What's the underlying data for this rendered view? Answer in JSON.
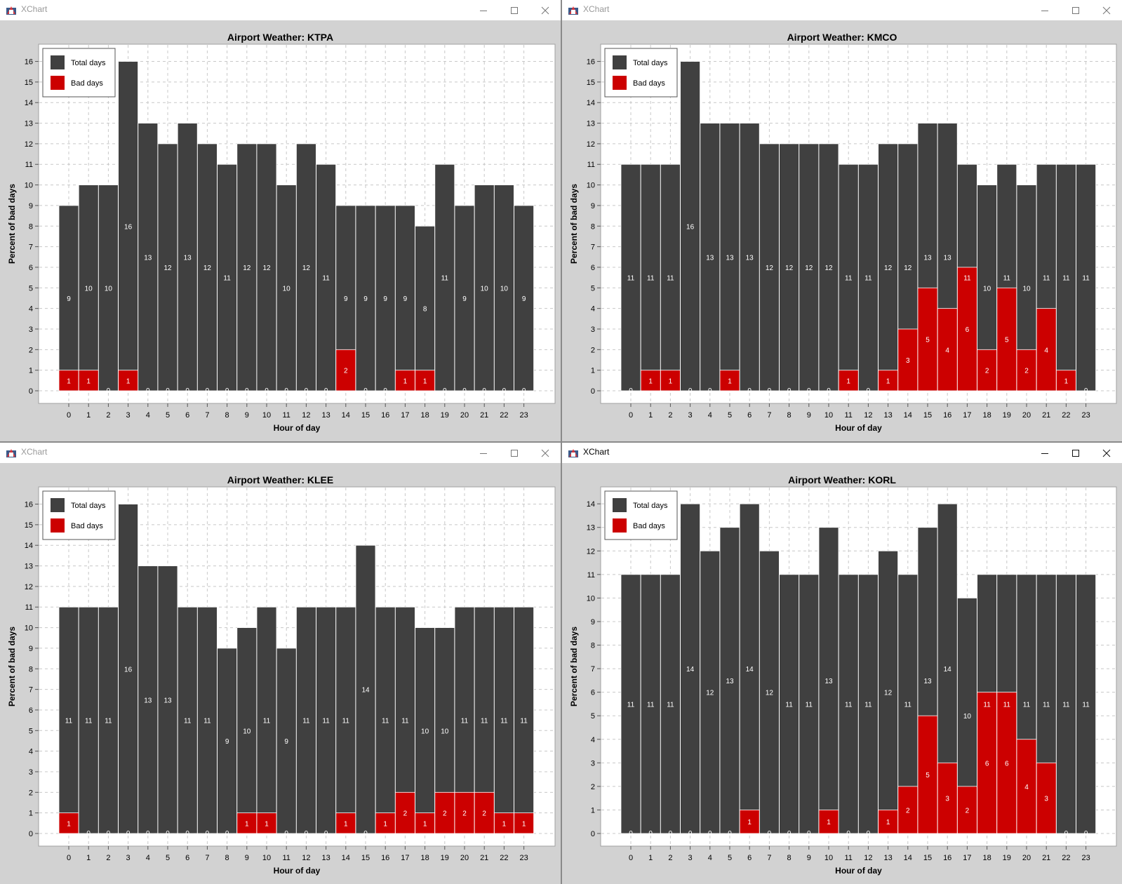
{
  "windows": [
    {
      "title": "XChart",
      "active": false
    },
    {
      "title": "XChart",
      "active": false
    },
    {
      "title": "XChart",
      "active": false
    },
    {
      "title": "XChart",
      "active": true
    }
  ],
  "colors": {
    "total": "#404040",
    "bad": "#cc0000",
    "background": "#d2d2d2",
    "plot": "#ffffff",
    "grid": "#c8c8c8"
  },
  "chart_data": [
    {
      "type": "bar",
      "title": "Airport Weather: KTPA",
      "xlabel": "Hour of day",
      "ylabel": "Percent of bad days",
      "categories": [
        "0",
        "1",
        "2",
        "3",
        "4",
        "5",
        "6",
        "7",
        "8",
        "9",
        "10",
        "11",
        "12",
        "13",
        "14",
        "15",
        "16",
        "17",
        "18",
        "19",
        "20",
        "21",
        "22",
        "23"
      ],
      "ylim": [
        0,
        16.7
      ],
      "yticks": [
        "0",
        "1",
        "2",
        "3",
        "4",
        "5",
        "6",
        "7",
        "8",
        "9",
        "10",
        "11",
        "12",
        "13",
        "14",
        "15",
        "16"
      ],
      "grid": true,
      "legend_position": "top-left",
      "overlap": true,
      "series": [
        {
          "name": "Total days",
          "color": "#404040",
          "values": [
            9,
            10,
            10,
            16,
            13,
            12,
            13,
            12,
            11,
            12,
            12,
            10,
            12,
            11,
            9,
            9,
            9,
            9,
            8,
            11,
            9,
            10,
            10,
            9
          ]
        },
        {
          "name": "Bad days",
          "color": "#cc0000",
          "values": [
            1,
            1,
            0,
            1,
            0,
            0,
            0,
            0,
            0,
            0,
            0,
            0,
            0,
            0,
            2,
            0,
            0,
            1,
            1,
            0,
            0,
            0,
            0,
            0
          ]
        }
      ]
    },
    {
      "type": "bar",
      "title": "Airport Weather: KMCO",
      "xlabel": "Hour of day",
      "ylabel": "Percent of bad days",
      "categories": [
        "0",
        "1",
        "2",
        "3",
        "4",
        "5",
        "6",
        "7",
        "8",
        "9",
        "10",
        "11",
        "12",
        "13",
        "14",
        "15",
        "16",
        "17",
        "18",
        "19",
        "20",
        "21",
        "22",
        "23"
      ],
      "ylim": [
        0,
        16.7
      ],
      "yticks": [
        "0",
        "1",
        "2",
        "3",
        "4",
        "5",
        "6",
        "7",
        "8",
        "9",
        "10",
        "11",
        "12",
        "13",
        "14",
        "15",
        "16"
      ],
      "grid": true,
      "legend_position": "top-left",
      "overlap": true,
      "series": [
        {
          "name": "Total days",
          "color": "#404040",
          "values": [
            11,
            11,
            11,
            16,
            13,
            13,
            13,
            12,
            12,
            12,
            12,
            11,
            11,
            12,
            12,
            13,
            13,
            11,
            10,
            11,
            10,
            11,
            11,
            11
          ]
        },
        {
          "name": "Bad days",
          "color": "#cc0000",
          "values": [
            0,
            1,
            1,
            0,
            0,
            1,
            0,
            0,
            0,
            0,
            0,
            1,
            0,
            1,
            3,
            5,
            4,
            6,
            2,
            5,
            2,
            4,
            1,
            0
          ]
        }
      ]
    },
    {
      "type": "bar",
      "title": "Airport Weather: KLEE",
      "xlabel": "Hour of day",
      "ylabel": "Percent of bad days",
      "categories": [
        "0",
        "1",
        "2",
        "3",
        "4",
        "5",
        "6",
        "7",
        "8",
        "9",
        "10",
        "11",
        "12",
        "13",
        "14",
        "15",
        "16",
        "17",
        "18",
        "19",
        "20",
        "21",
        "22",
        "23"
      ],
      "ylim": [
        0,
        16.7
      ],
      "yticks": [
        "0",
        "1",
        "2",
        "3",
        "4",
        "5",
        "6",
        "7",
        "8",
        "9",
        "10",
        "11",
        "12",
        "13",
        "14",
        "15",
        "16"
      ],
      "grid": true,
      "legend_position": "top-left",
      "overlap": true,
      "series": [
        {
          "name": "Total days",
          "color": "#404040",
          "values": [
            11,
            11,
            11,
            16,
            13,
            13,
            11,
            11,
            9,
            10,
            11,
            9,
            11,
            11,
            11,
            14,
            11,
            11,
            10,
            10,
            11,
            11,
            11,
            11
          ]
        },
        {
          "name": "Bad days",
          "color": "#cc0000",
          "values": [
            1,
            0,
            0,
            0,
            0,
            0,
            0,
            0,
            0,
            1,
            1,
            0,
            0,
            0,
            1,
            0,
            1,
            2,
            1,
            2,
            2,
            2,
            1,
            1
          ]
        }
      ]
    },
    {
      "type": "bar",
      "title": "Airport Weather: KORL",
      "xlabel": "Hour of day",
      "ylabel": "Percent of bad days",
      "categories": [
        "0",
        "1",
        "2",
        "3",
        "4",
        "5",
        "6",
        "7",
        "8",
        "9",
        "10",
        "11",
        "12",
        "13",
        "14",
        "15",
        "16",
        "17",
        "18",
        "19",
        "20",
        "21",
        "22",
        "23"
      ],
      "ylim": [
        0,
        14.6
      ],
      "yticks": [
        "0",
        "1",
        "2",
        "3",
        "4",
        "5",
        "6",
        "7",
        "8",
        "9",
        "10",
        "11",
        "12",
        "13",
        "14"
      ],
      "grid": true,
      "legend_position": "top-left",
      "overlap": true,
      "series": [
        {
          "name": "Total days",
          "color": "#404040",
          "values": [
            11,
            11,
            11,
            14,
            12,
            13,
            14,
            12,
            11,
            11,
            13,
            11,
            11,
            12,
            11,
            13,
            14,
            10,
            11,
            11,
            11,
            11,
            11,
            11
          ]
        },
        {
          "name": "Bad days",
          "color": "#cc0000",
          "values": [
            0,
            0,
            0,
            0,
            0,
            0,
            1,
            0,
            0,
            0,
            1,
            0,
            0,
            1,
            2,
            5,
            3,
            2,
            6,
            6,
            4,
            3,
            0,
            0
          ]
        }
      ]
    }
  ]
}
